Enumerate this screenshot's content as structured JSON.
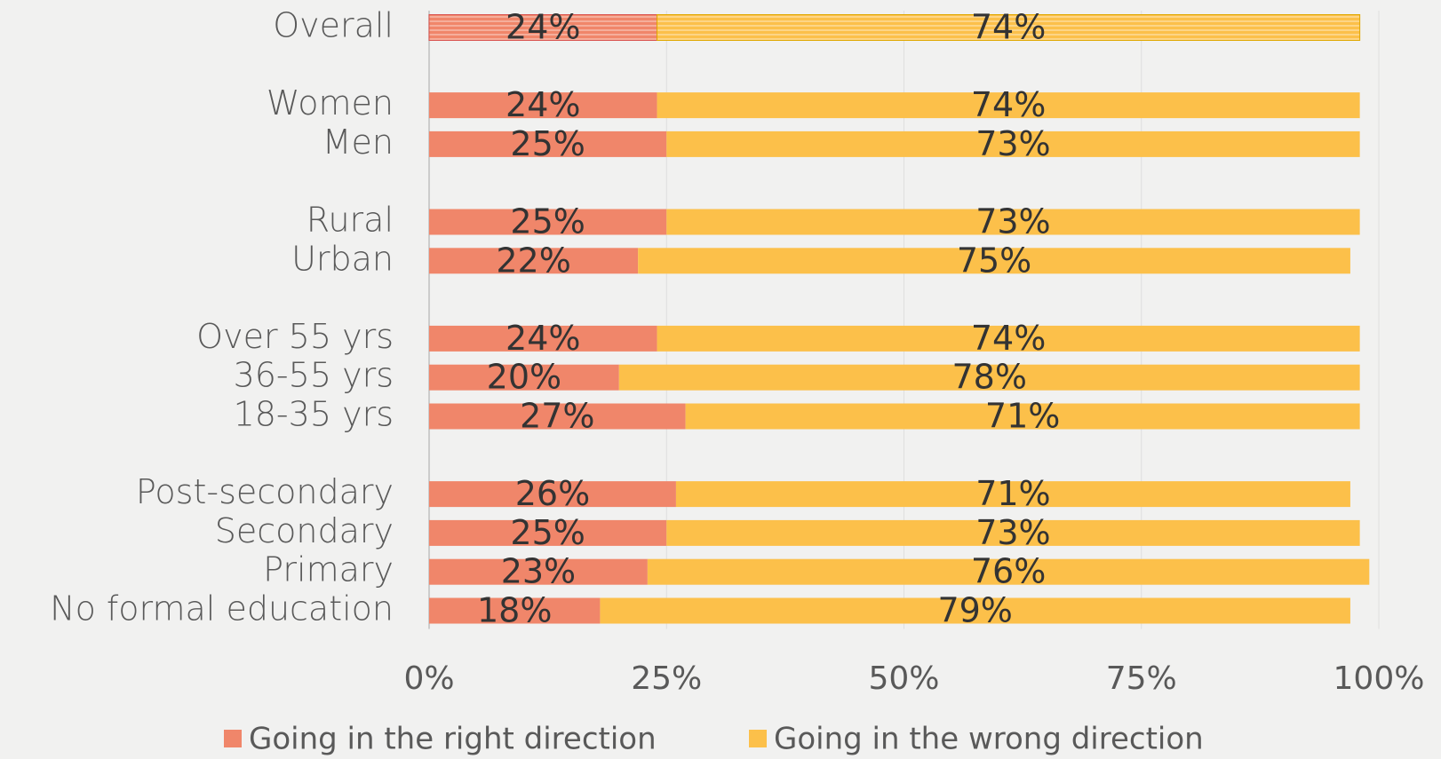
{
  "chart_data": {
    "type": "stacked_barh",
    "categories": [
      "Overall",
      null,
      "Women",
      "Men",
      null,
      "Rural",
      "Urban",
      null,
      "Over 55 yrs",
      "36-55 yrs",
      "18-35 yrs",
      null,
      "Post-secondary",
      "Secondary",
      "Primary",
      "No formal education"
    ],
    "series": [
      {
        "name": "Going in the right direction",
        "color": "#f0866a",
        "values": [
          24,
          null,
          24,
          25,
          null,
          25,
          22,
          null,
          24,
          20,
          27,
          null,
          26,
          25,
          23,
          18
        ],
        "value_labels": [
          "24%",
          null,
          "24%",
          "25%",
          null,
          "25%",
          "22%",
          null,
          "24%",
          "20%",
          "27%",
          null,
          "26%",
          "25%",
          "23%",
          "18%"
        ]
      },
      {
        "name": "Going in the wrong direction",
        "color": "#fcc04a",
        "values": [
          74,
          null,
          74,
          73,
          null,
          73,
          75,
          null,
          74,
          78,
          71,
          null,
          71,
          73,
          76,
          79
        ],
        "value_labels": [
          "74%",
          null,
          "74%",
          "73%",
          null,
          "73%",
          "75%",
          null,
          "74%",
          "78%",
          "71%",
          null,
          "71%",
          "73%",
          "76%",
          "79%"
        ]
      }
    ],
    "xlim": [
      0,
      100
    ],
    "xticks": [
      {
        "value": 0,
        "label": "0%"
      },
      {
        "value": 25,
        "label": "25%"
      },
      {
        "value": 50,
        "label": "50%"
      },
      {
        "value": 75,
        "label": "75%"
      },
      {
        "value": 100,
        "label": "100%"
      }
    ],
    "grid": true,
    "legend": "bottom"
  }
}
